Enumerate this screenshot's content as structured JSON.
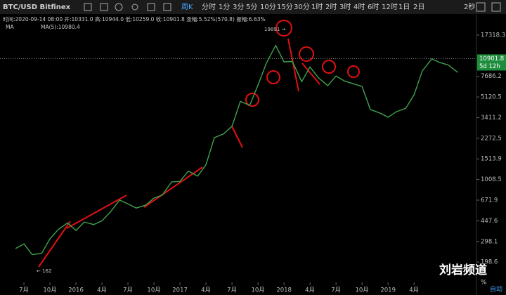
{
  "toolbar": {
    "symbol": "BTC/USD Bitfinex",
    "period": "周K",
    "intervals": [
      "分时",
      "1分",
      "3分",
      "5分",
      "10分",
      "15分",
      "30分",
      "1时",
      "2时",
      "3时",
      "4时",
      "6时",
      "12时",
      "1日",
      "2日"
    ],
    "refresh": "2秒"
  },
  "info": {
    "line": "时间:2020-09-14 08:00 开:10331.0 高:10944.0 低:10259.0 收:10901.8 涨幅:5.52%(570.8) 振幅:6.63%",
    "ma_label": "MA",
    "ma_value": "MA(5):10980.4"
  },
  "chart_data": {
    "type": "line",
    "log_scale": true,
    "color": "#3fa34d",
    "x": [
      2015.42,
      2015.5,
      2015.58,
      2015.67,
      2015.75,
      2015.83,
      2015.92,
      2016.0,
      2016.08,
      2016.17,
      2016.25,
      2016.33,
      2016.42,
      2016.5,
      2016.58,
      2016.67,
      2016.75,
      2016.83,
      2016.92,
      2017.0,
      2017.08,
      2017.17,
      2017.25,
      2017.33,
      2017.42,
      2017.5,
      2017.58,
      2017.67,
      2017.75,
      2017.83,
      2017.92,
      2018.0,
      2018.08,
      2018.17,
      2018.25,
      2018.33,
      2018.42,
      2018.5,
      2018.58,
      2018.67,
      2018.75,
      2018.83,
      2018.92,
      2019.0,
      2019.08,
      2019.17,
      2019.25,
      2019.33,
      2019.42,
      2019.5,
      2019.58,
      2019.67
    ],
    "values": [
      260,
      284,
      230,
      236,
      314,
      377,
      430,
      370,
      437,
      416,
      448,
      531,
      673,
      624,
      575,
      609,
      700,
      742,
      963,
      970,
      1190,
      1080,
      1350,
      2300,
      2480,
      2880,
      4700,
      4340,
      6470,
      9950,
      14150,
      10220,
      10320,
      6930,
      9240,
      7490,
      6400,
      7730,
      7030,
      6630,
      6300,
      4000,
      3740,
      3440,
      3830,
      4100,
      5350,
      8570,
      10820,
      10080,
      9600,
      8300
    ],
    "xlim": [
      2015.27,
      2019.85
    ],
    "xticks": [
      {
        "value": 2015.5,
        "label": "7月"
      },
      {
        "value": 2015.75,
        "label": "10月"
      },
      2016,
      {
        "value": 2016.25,
        "label": "4月"
      },
      {
        "value": 2016.5,
        "label": "7月"
      },
      {
        "value": 2016.75,
        "label": "10月"
      },
      2017,
      {
        "value": 2017.25,
        "label": "4月"
      },
      {
        "value": 2017.5,
        "label": "7月"
      },
      {
        "value": 2017.75,
        "label": "10月"
      },
      2018,
      {
        "value": 2018.25,
        "label": "4月"
      },
      {
        "value": 2018.5,
        "label": "7月"
      },
      {
        "value": 2018.75,
        "label": "10月"
      },
      2019,
      {
        "value": 2019.25,
        "label": "4月"
      }
    ],
    "ylim": [
      137,
      26200
    ],
    "yticks": [
      198.6,
      298.1,
      447.6,
      671.9,
      1008.5,
      1513.9,
      2272.5,
      3411.2,
      5120.5,
      7686.2,
      17318.3
    ],
    "last_price": 10901.8,
    "countdown": "5d 12h",
    "annotations": [
      {
        "text": "19891 →"
      },
      {
        "text": "← 162"
      }
    ]
  },
  "footer": {
    "percent": "%",
    "auto": "自动"
  },
  "watermark": "刘岩频道"
}
